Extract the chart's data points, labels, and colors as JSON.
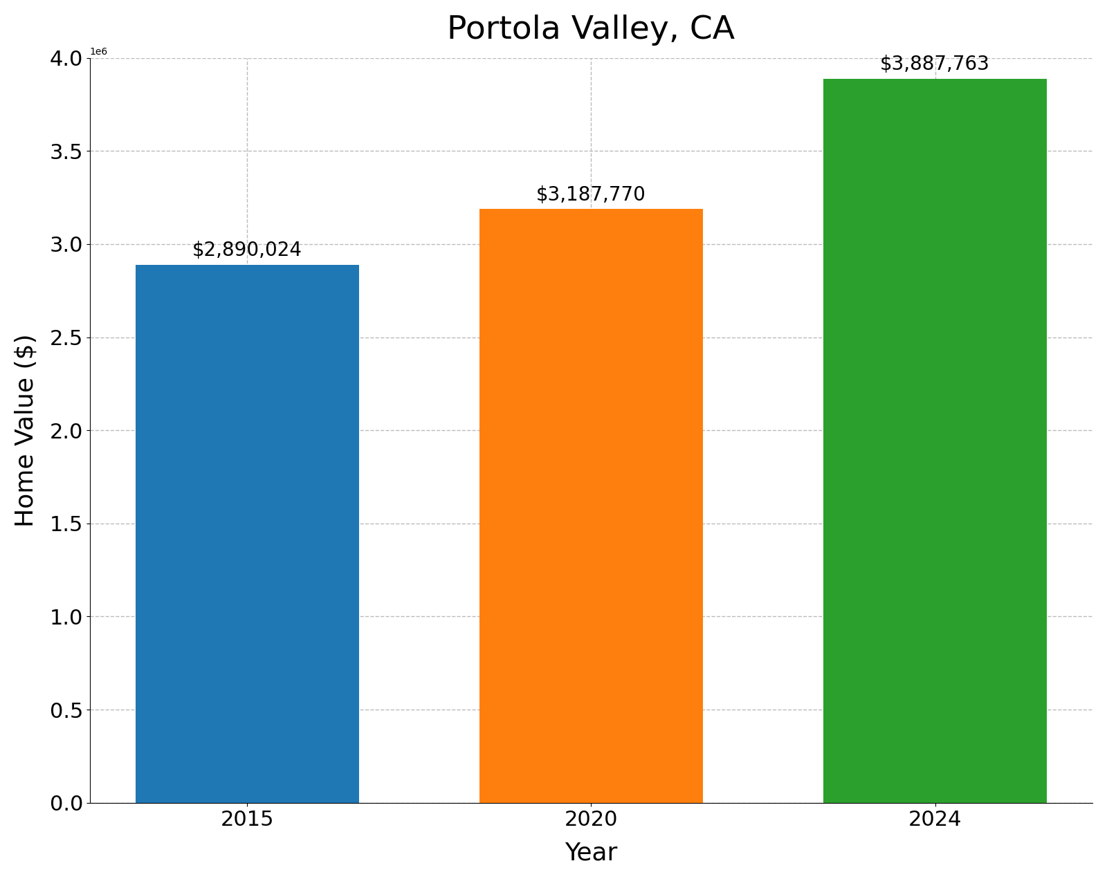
{
  "title": "Portola Valley, CA",
  "xlabel": "Year",
  "ylabel": "Home Value ($)",
  "categories": [
    "2015",
    "2020",
    "2024"
  ],
  "values": [
    2890024,
    3187770,
    3887763
  ],
  "bar_colors": [
    "#1f77b4",
    "#ff7f0e",
    "#2ca02c"
  ],
  "annotations": [
    "$2,890,024",
    "$3,187,770",
    "$3,887,763"
  ],
  "ylim": [
    0,
    4000000
  ],
  "title_fontsize": 34,
  "label_fontsize": 26,
  "tick_fontsize": 22,
  "annotation_fontsize": 20,
  "background_color": "#ffffff",
  "grid_color": "#bbbbbb",
  "bar_width": 0.65
}
